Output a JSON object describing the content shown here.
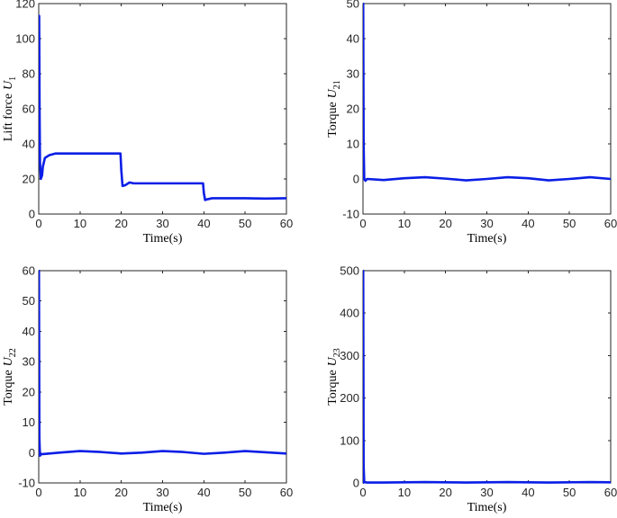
{
  "chart_data": [
    {
      "type": "line",
      "xlabel": "Time(s)",
      "ylabel": "Lift force",
      "ylabel_symbol": "U",
      "ylabel_sub": "1",
      "xlim": [
        0,
        60
      ],
      "ylim": [
        0,
        120
      ],
      "xticks": [
        0,
        10,
        20,
        30,
        40,
        50,
        60
      ],
      "yticks": [
        0,
        20,
        40,
        60,
        80,
        100,
        120
      ],
      "grid": false,
      "color": "#0a1ee6",
      "series": [
        {
          "x": [
            0,
            0.1,
            0.2,
            0.3,
            0.5,
            0.8,
            1.0,
            1.5,
            2.5,
            4,
            6,
            10,
            15,
            19.8,
            20.0,
            20.3,
            21,
            22,
            23,
            25,
            30,
            35,
            39.8,
            40.0,
            40.3,
            41,
            42,
            45,
            50,
            55,
            60
          ],
          "y": [
            70,
            113,
            60,
            30,
            20,
            22,
            27,
            32,
            33.5,
            34.5,
            34.5,
            34.5,
            34.5,
            34.5,
            25,
            16,
            16.5,
            18,
            17.5,
            17.5,
            17.5,
            17.5,
            17.5,
            12,
            8,
            8.5,
            9,
            9,
            9,
            8.8,
            9
          ]
        }
      ]
    },
    {
      "type": "line",
      "xlabel": "Time(s)",
      "ylabel": "Torque",
      "ylabel_symbol": "U",
      "ylabel_sub": "21",
      "xlim": [
        0,
        60
      ],
      "ylim": [
        -10,
        50
      ],
      "xticks": [
        0,
        10,
        20,
        30,
        40,
        50,
        60
      ],
      "yticks": [
        -10,
        0,
        10,
        20,
        30,
        40,
        50
      ],
      "grid": false,
      "color": "#0a1ee6",
      "series": [
        {
          "x": [
            0,
            0.05,
            0.15,
            0.3,
            0.6,
            1,
            5,
            10,
            15,
            20,
            25,
            30,
            35,
            40,
            45,
            50,
            55,
            60
          ],
          "y": [
            0,
            50,
            10,
            0,
            -0.5,
            0,
            -0.3,
            0.2,
            0.5,
            0.1,
            -0.4,
            0.0,
            0.5,
            0.2,
            -0.4,
            0.0,
            0.5,
            0.0
          ]
        }
      ]
    },
    {
      "type": "line",
      "xlabel": "Time(s)",
      "ylabel": "Torque",
      "ylabel_symbol": "U",
      "ylabel_sub": "22",
      "xlim": [
        0,
        60
      ],
      "ylim": [
        -10,
        60
      ],
      "xticks": [
        0,
        10,
        20,
        30,
        40,
        50,
        60
      ],
      "yticks": [
        -10,
        0,
        10,
        20,
        30,
        40,
        50,
        60
      ],
      "grid": false,
      "color": "#0a1ee6",
      "series": [
        {
          "x": [
            0,
            0.05,
            0.15,
            0.3,
            0.6,
            1,
            5,
            10,
            15,
            20,
            25,
            30,
            35,
            40,
            45,
            50,
            55,
            60
          ],
          "y": [
            0,
            60,
            5,
            -1,
            -0.5,
            -0.5,
            0,
            0.5,
            0.2,
            -0.3,
            0.0,
            0.5,
            0.2,
            -0.4,
            0.0,
            0.5,
            0.1,
            -0.3
          ]
        }
      ]
    },
    {
      "type": "line",
      "xlabel": "Time(s)",
      "ylabel": "Torque",
      "ylabel_symbol": "U",
      "ylabel_sub": "23",
      "xlim": [
        0,
        60
      ],
      "ylim": [
        0,
        500
      ],
      "xticks": [
        0,
        10,
        20,
        30,
        40,
        50,
        60
      ],
      "yticks": [
        0,
        100,
        200,
        300,
        400,
        500
      ],
      "grid": false,
      "color": "#0a1ee6",
      "series": [
        {
          "x": [
            0,
            0.05,
            0.15,
            0.3,
            1,
            5,
            10,
            15,
            20,
            25,
            30,
            35,
            40,
            45,
            50,
            55,
            60
          ],
          "y": [
            0,
            500,
            40,
            2,
            1,
            1,
            1.5,
            2,
            1.5,
            1,
            1.5,
            2,
            1.5,
            1,
            1.5,
            2,
            1.5
          ]
        }
      ]
    }
  ]
}
